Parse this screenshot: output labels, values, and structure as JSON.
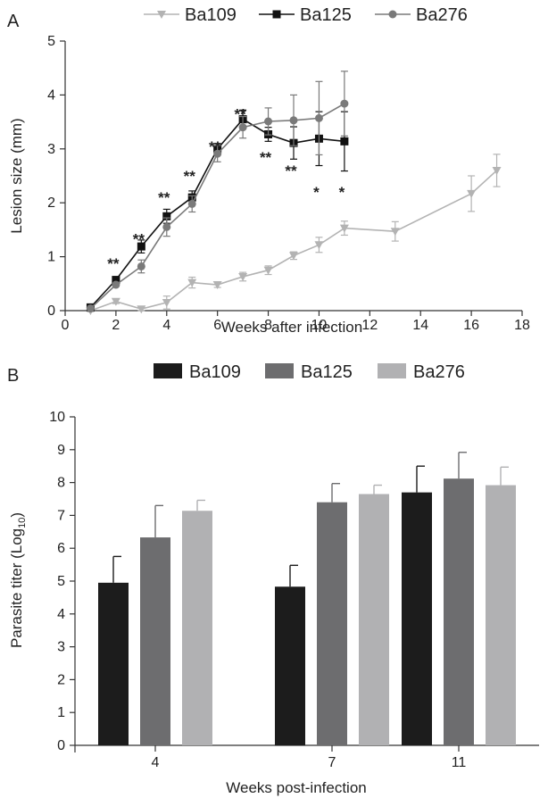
{
  "chart_data": [
    {
      "panel": "A",
      "type": "line",
      "xlabel": "Weeks after infection",
      "ylabel": "Lesion size (mm)",
      "xlim": [
        0,
        18
      ],
      "ylim": [
        0,
        5
      ],
      "xticks": [
        0,
        2,
        4,
        6,
        8,
        10,
        12,
        14,
        16,
        18
      ],
      "yticks": [
        0,
        1,
        2,
        3,
        4,
        5
      ],
      "legend_position": "top",
      "grid": false,
      "series": [
        {
          "name": "Ba109",
          "color": "#b3b3b3",
          "marker": "triangle-down",
          "x": [
            1,
            2,
            3,
            4,
            5,
            6,
            7,
            8,
            9,
            10,
            11,
            13,
            16,
            17
          ],
          "y": [
            0.0,
            0.17,
            0.03,
            0.15,
            0.52,
            0.48,
            0.63,
            0.75,
            1.02,
            1.22,
            1.53,
            1.47,
            2.17,
            2.6
          ],
          "err": [
            0.02,
            0.04,
            0.03,
            0.12,
            0.1,
            0.05,
            0.08,
            0.08,
            0.07,
            0.14,
            0.13,
            0.18,
            0.33,
            0.3
          ]
        },
        {
          "name": "Ba125",
          "color": "#111111",
          "marker": "square",
          "x": [
            1,
            2,
            3,
            4,
            5,
            6,
            7,
            8,
            9,
            10,
            11
          ],
          "y": [
            0.06,
            0.57,
            1.19,
            1.75,
            2.1,
            3.0,
            3.55,
            3.27,
            3.11,
            3.19,
            3.14
          ],
          "err": [
            0.02,
            0.04,
            0.12,
            0.13,
            0.12,
            0.1,
            0.17,
            0.13,
            0.3,
            0.5,
            0.55
          ]
        },
        {
          "name": "Ba276",
          "color": "#7a7a7a",
          "marker": "circle",
          "x": [
            1,
            2,
            3,
            4,
            5,
            6,
            7,
            8,
            9,
            10,
            11
          ],
          "y": [
            0.04,
            0.48,
            0.82,
            1.55,
            1.98,
            2.91,
            3.4,
            3.51,
            3.53,
            3.57,
            3.84
          ],
          "err": [
            0.02,
            0.03,
            0.12,
            0.17,
            0.15,
            0.15,
            0.2,
            0.25,
            0.47,
            0.68,
            0.6
          ]
        }
      ],
      "annotations": [
        {
          "x": 2,
          "y": 0.88,
          "text": "**"
        },
        {
          "x": 3,
          "y": 1.33,
          "text": "**"
        },
        {
          "x": 4,
          "y": 2.1,
          "text": "**"
        },
        {
          "x": 5,
          "y": 2.5,
          "text": "**"
        },
        {
          "x": 6,
          "y": 3.05,
          "text": "**"
        },
        {
          "x": 7,
          "y": 3.65,
          "text": "**"
        },
        {
          "x": 8,
          "y": 2.85,
          "text": "**"
        },
        {
          "x": 9,
          "y": 2.6,
          "text": "**"
        },
        {
          "x": 10,
          "y": 2.2,
          "text": "*"
        },
        {
          "x": 11,
          "y": 2.2,
          "text": "*"
        }
      ]
    },
    {
      "panel": "B",
      "type": "bar",
      "xlabel": "Weeks post-infection",
      "ylabel": "Parasite titer (Log",
      "ylabel_subscript": "10",
      "ylabel_suffix": ")",
      "categories": [
        "4",
        "7",
        "11"
      ],
      "ylim": [
        0,
        10
      ],
      "yticks": [
        0,
        1,
        2,
        3,
        4,
        5,
        6,
        7,
        8,
        9,
        10
      ],
      "legend_position": "top",
      "grid": false,
      "series": [
        {
          "name": "Ba109",
          "color": "#1c1c1c",
          "values": [
            4.95,
            4.83,
            7.7
          ],
          "err": [
            0.8,
            0.65,
            0.8
          ]
        },
        {
          "name": "Ba125",
          "color": "#6d6d6f",
          "values": [
            6.33,
            7.4,
            8.12
          ],
          "err": [
            0.97,
            0.57,
            0.8
          ]
        },
        {
          "name": "Ba276",
          "color": "#b1b1b3",
          "values": [
            7.14,
            7.65,
            7.92
          ],
          "err": [
            0.32,
            0.27,
            0.55
          ]
        }
      ]
    }
  ]
}
